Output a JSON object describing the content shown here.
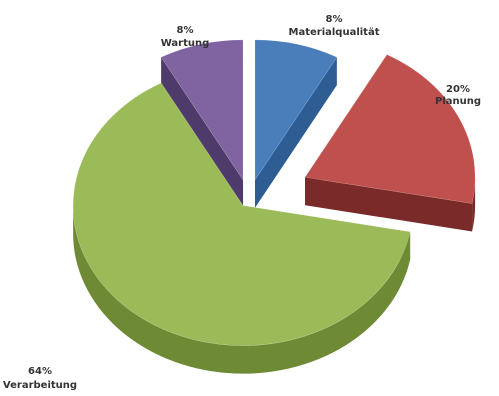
{
  "chart_data": {
    "type": "pie",
    "title": "",
    "slices": [
      {
        "label": "Materialqualität",
        "percent_label": "8%",
        "value": 8,
        "color": "#4A7EBB",
        "side_color": "#2E5D93"
      },
      {
        "label": "Planung",
        "percent_label": "20%",
        "value": 20,
        "color": "#C0504D",
        "side_color": "#7A2A28"
      },
      {
        "label": "Verarbeitung",
        "percent_label": "64%",
        "value": 64,
        "color": "#9BBB59",
        "side_color": "#6F8A35"
      },
      {
        "label": "Wartung",
        "percent_label": "8%",
        "value": 8,
        "color": "#8064A2",
        "side_color": "#4E3A6B"
      }
    ]
  }
}
